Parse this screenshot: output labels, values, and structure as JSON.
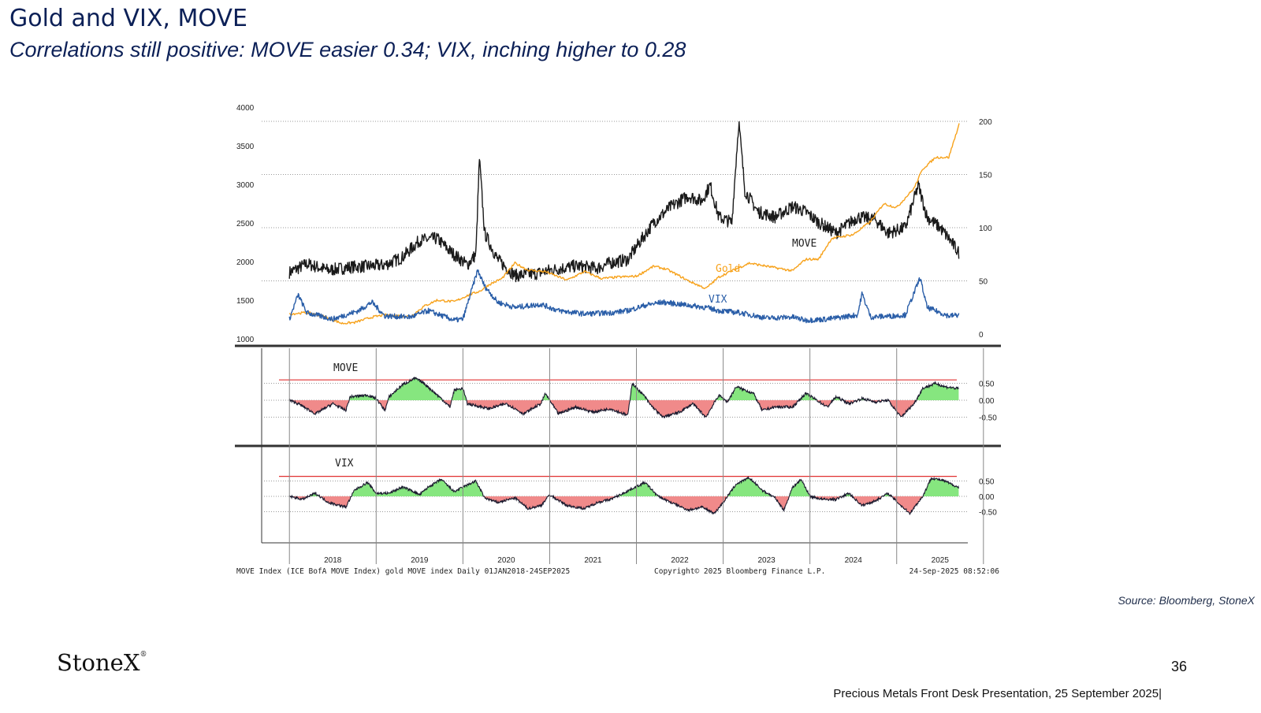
{
  "slide": {
    "title": "Gold and VIX, MOVE",
    "subtitle": "Correlations still positive:  MOVE easier 0.34; VIX, inching higher to 0.28",
    "source": "Source: Bloomberg, StoneX",
    "logo": "StoneX",
    "page_number": "36",
    "footer": "Precious Metals Front Desk Presentation, 25 September 2025|"
  },
  "colors": {
    "title": "#0c2057",
    "gold": "#f7a21b",
    "move": "#1a1a1a",
    "vix": "#2a5ea8",
    "positive_fill": "#86e67f",
    "negative_fill": "#f08a8a",
    "redline": "#e03030"
  },
  "chart_data": [
    {
      "type": "line",
      "panel": "top",
      "left_axis_ticks": [
        "4000",
        "3500",
        "3000",
        "2500",
        "2000",
        "1500",
        "1000"
      ],
      "right_axis_ticks": [
        "200",
        "150",
        "100",
        "50",
        "0"
      ],
      "ylim_left": [
        1000,
        4000
      ],
      "ylim_right": [
        0,
        210
      ],
      "x_ticks": [
        "2018",
        "2019",
        "2020",
        "2021",
        "2022",
        "2023",
        "2024",
        "2025"
      ],
      "grid": true,
      "series": [
        {
          "name": "MOVE",
          "axis": "right",
          "points": [
            [
              2018.0,
              58
            ],
            [
              2018.2,
              66
            ],
            [
              2018.45,
              60
            ],
            [
              2018.7,
              63
            ],
            [
              2018.95,
              64
            ],
            [
              2019.1,
              65
            ],
            [
              2019.3,
              72
            ],
            [
              2019.5,
              88
            ],
            [
              2019.7,
              90
            ],
            [
              2019.85,
              78
            ],
            [
              2020.05,
              65
            ],
            [
              2020.15,
              75
            ],
            [
              2020.19,
              165
            ],
            [
              2020.25,
              95
            ],
            [
              2020.4,
              70
            ],
            [
              2020.6,
              55
            ],
            [
              2020.85,
              57
            ],
            [
              2021.0,
              60
            ],
            [
              2021.3,
              64
            ],
            [
              2021.55,
              62
            ],
            [
              2021.7,
              67
            ],
            [
              2021.9,
              70
            ],
            [
              2022.0,
              82
            ],
            [
              2022.2,
              105
            ],
            [
              2022.4,
              120
            ],
            [
              2022.6,
              130
            ],
            [
              2022.75,
              125
            ],
            [
              2022.85,
              140
            ],
            [
              2022.95,
              110
            ],
            [
              2023.1,
              105
            ],
            [
              2023.18,
              200
            ],
            [
              2023.25,
              135
            ],
            [
              2023.4,
              115
            ],
            [
              2023.6,
              110
            ],
            [
              2023.8,
              120
            ],
            [
              2023.95,
              115
            ],
            [
              2024.1,
              105
            ],
            [
              2024.3,
              95
            ],
            [
              2024.55,
              110
            ],
            [
              2024.75,
              108
            ],
            [
              2024.9,
              95
            ],
            [
              2025.1,
              100
            ],
            [
              2025.25,
              140
            ],
            [
              2025.35,
              110
            ],
            [
              2025.5,
              100
            ],
            [
              2025.6,
              90
            ],
            [
              2025.72,
              76
            ]
          ]
        },
        {
          "name": "Gold",
          "axis": "left",
          "points": [
            [
              2018.0,
              1320
            ],
            [
              2018.2,
              1340
            ],
            [
              2018.4,
              1290
            ],
            [
              2018.6,
              1200
            ],
            [
              2018.75,
              1210
            ],
            [
              2018.95,
              1280
            ],
            [
              2019.1,
              1310
            ],
            [
              2019.4,
              1290
            ],
            [
              2019.55,
              1420
            ],
            [
              2019.7,
              1500
            ],
            [
              2019.9,
              1480
            ],
            [
              2020.05,
              1560
            ],
            [
              2020.2,
              1620
            ],
            [
              2020.3,
              1700
            ],
            [
              2020.45,
              1780
            ],
            [
              2020.6,
              1980
            ],
            [
              2020.75,
              1890
            ],
            [
              2020.95,
              1870
            ],
            [
              2021.2,
              1760
            ],
            [
              2021.4,
              1870
            ],
            [
              2021.6,
              1780
            ],
            [
              2021.8,
              1800
            ],
            [
              2022.0,
              1810
            ],
            [
              2022.2,
              1940
            ],
            [
              2022.35,
              1900
            ],
            [
              2022.6,
              1750
            ],
            [
              2022.8,
              1650
            ],
            [
              2022.95,
              1800
            ],
            [
              2023.1,
              1880
            ],
            [
              2023.3,
              1980
            ],
            [
              2023.5,
              1940
            ],
            [
              2023.8,
              1880
            ],
            [
              2023.95,
              2030
            ],
            [
              2024.1,
              2030
            ],
            [
              2024.25,
              2300
            ],
            [
              2024.5,
              2350
            ],
            [
              2024.7,
              2520
            ],
            [
              2024.85,
              2750
            ],
            [
              2025.0,
              2700
            ],
            [
              2025.2,
              2950
            ],
            [
              2025.3,
              3200
            ],
            [
              2025.45,
              3350
            ],
            [
              2025.6,
              3350
            ],
            [
              2025.72,
              3780
            ]
          ]
        },
        {
          "name": "VIX",
          "axis": "right",
          "points": [
            [
              2018.0,
              14
            ],
            [
              2018.1,
              37
            ],
            [
              2018.2,
              20
            ],
            [
              2018.5,
              14
            ],
            [
              2018.8,
              22
            ],
            [
              2018.95,
              30
            ],
            [
              2019.1,
              17
            ],
            [
              2019.4,
              16
            ],
            [
              2019.6,
              22
            ],
            [
              2019.9,
              13
            ],
            [
              2020.0,
              14
            ],
            [
              2020.17,
              60
            ],
            [
              2020.25,
              45
            ],
            [
              2020.4,
              30
            ],
            [
              2020.6,
              25
            ],
            [
              2020.9,
              28
            ],
            [
              2021.1,
              22
            ],
            [
              2021.4,
              19
            ],
            [
              2021.7,
              20
            ],
            [
              2021.9,
              22
            ],
            [
              2022.1,
              27
            ],
            [
              2022.3,
              30
            ],
            [
              2022.5,
              28
            ],
            [
              2022.8,
              25
            ],
            [
              2022.95,
              22
            ],
            [
              2023.2,
              20
            ],
            [
              2023.5,
              15
            ],
            [
              2023.8,
              16
            ],
            [
              2023.95,
              13
            ],
            [
              2024.2,
              14
            ],
            [
              2024.55,
              18
            ],
            [
              2024.6,
              38
            ],
            [
              2024.7,
              16
            ],
            [
              2024.95,
              17
            ],
            [
              2025.1,
              18
            ],
            [
              2025.27,
              53
            ],
            [
              2025.35,
              25
            ],
            [
              2025.6,
              17
            ],
            [
              2025.72,
              18
            ]
          ]
        }
      ],
      "annotations": [
        "MOVE",
        "Gold",
        "VIX"
      ]
    },
    {
      "type": "area",
      "panel": "middle",
      "name": "MOVE",
      "y_ticks": [
        "0.50",
        "0.00",
        "-0.50"
      ],
      "ylim": [
        -0.6,
        0.65
      ],
      "threshold_line": 0.6,
      "points": [
        [
          2018.0,
          0.0
        ],
        [
          2018.1,
          -0.1
        ],
        [
          2018.3,
          -0.4
        ],
        [
          2018.5,
          -0.1
        ],
        [
          2018.65,
          -0.3
        ],
        [
          2018.7,
          0.1
        ],
        [
          2018.9,
          0.15
        ],
        [
          2019.0,
          0.05
        ],
        [
          2019.1,
          -0.3
        ],
        [
          2019.15,
          0.1
        ],
        [
          2019.3,
          0.45
        ],
        [
          2019.45,
          0.65
        ],
        [
          2019.55,
          0.5
        ],
        [
          2019.75,
          0.05
        ],
        [
          2019.85,
          -0.2
        ],
        [
          2019.9,
          0.3
        ],
        [
          2020.0,
          0.35
        ],
        [
          2020.05,
          -0.1
        ],
        [
          2020.3,
          -0.25
        ],
        [
          2020.5,
          -0.1
        ],
        [
          2020.7,
          -0.4
        ],
        [
          2020.9,
          -0.1
        ],
        [
          2020.95,
          0.2
        ],
        [
          2021.1,
          -0.4
        ],
        [
          2021.3,
          -0.2
        ],
        [
          2021.5,
          -0.35
        ],
        [
          2021.7,
          -0.25
        ],
        [
          2021.9,
          -0.45
        ],
        [
          2021.95,
          0.5
        ],
        [
          2022.1,
          0.1
        ],
        [
          2022.15,
          -0.1
        ],
        [
          2022.3,
          -0.5
        ],
        [
          2022.5,
          -0.35
        ],
        [
          2022.65,
          -0.1
        ],
        [
          2022.8,
          -0.5
        ],
        [
          2022.95,
          0.15
        ],
        [
          2023.05,
          -0.05
        ],
        [
          2023.15,
          0.4
        ],
        [
          2023.35,
          0.2
        ],
        [
          2023.45,
          -0.3
        ],
        [
          2023.6,
          -0.2
        ],
        [
          2023.8,
          -0.2
        ],
        [
          2023.95,
          0.2
        ],
        [
          2024.05,
          0.05
        ],
        [
          2024.2,
          -0.2
        ],
        [
          2024.3,
          0.1
        ],
        [
          2024.45,
          -0.1
        ],
        [
          2024.6,
          0.05
        ],
        [
          2024.75,
          -0.05
        ],
        [
          2024.9,
          0.0
        ],
        [
          2025.05,
          -0.5
        ],
        [
          2025.2,
          -0.1
        ],
        [
          2025.3,
          0.35
        ],
        [
          2025.45,
          0.5
        ],
        [
          2025.55,
          0.4
        ],
        [
          2025.72,
          0.34
        ]
      ]
    },
    {
      "type": "area",
      "panel": "bottom",
      "name": "VIX",
      "y_ticks": [
        "0.50",
        "0.00",
        "-0.50"
      ],
      "ylim": [
        -0.65,
        0.7
      ],
      "threshold_line": 0.65,
      "points": [
        [
          2018.0,
          0.0
        ],
        [
          2018.15,
          -0.1
        ],
        [
          2018.3,
          0.1
        ],
        [
          2018.45,
          -0.2
        ],
        [
          2018.65,
          -0.35
        ],
        [
          2018.75,
          0.2
        ],
        [
          2018.9,
          0.45
        ],
        [
          2019.0,
          0.1
        ],
        [
          2019.15,
          0.1
        ],
        [
          2019.3,
          0.3
        ],
        [
          2019.4,
          0.2
        ],
        [
          2019.5,
          0.05
        ],
        [
          2019.6,
          0.3
        ],
        [
          2019.75,
          0.55
        ],
        [
          2019.9,
          0.15
        ],
        [
          2020.0,
          0.3
        ],
        [
          2020.15,
          0.5
        ],
        [
          2020.25,
          -0.05
        ],
        [
          2020.4,
          -0.2
        ],
        [
          2020.6,
          -0.05
        ],
        [
          2020.75,
          -0.4
        ],
        [
          2020.9,
          -0.3
        ],
        [
          2021.0,
          0.05
        ],
        [
          2021.2,
          -0.3
        ],
        [
          2021.4,
          -0.4
        ],
        [
          2021.55,
          -0.2
        ],
        [
          2021.7,
          -0.1
        ],
        [
          2021.85,
          0.1
        ],
        [
          2021.95,
          0.25
        ],
        [
          2022.1,
          0.45
        ],
        [
          2022.25,
          0.0
        ],
        [
          2022.4,
          -0.2
        ],
        [
          2022.6,
          -0.45
        ],
        [
          2022.75,
          -0.35
        ],
        [
          2022.9,
          -0.55
        ],
        [
          2023.0,
          -0.2
        ],
        [
          2023.15,
          0.4
        ],
        [
          2023.3,
          0.6
        ],
        [
          2023.45,
          0.2
        ],
        [
          2023.6,
          -0.05
        ],
        [
          2023.7,
          -0.45
        ],
        [
          2023.8,
          0.3
        ],
        [
          2023.9,
          0.55
        ],
        [
          2024.0,
          0.0
        ],
        [
          2024.15,
          -0.1
        ],
        [
          2024.3,
          -0.1
        ],
        [
          2024.45,
          0.1
        ],
        [
          2024.6,
          -0.3
        ],
        [
          2024.75,
          -0.15
        ],
        [
          2024.9,
          0.1
        ],
        [
          2025.05,
          -0.3
        ],
        [
          2025.15,
          -0.55
        ],
        [
          2025.3,
          0.0
        ],
        [
          2025.4,
          0.6
        ],
        [
          2025.55,
          0.5
        ],
        [
          2025.72,
          0.28
        ]
      ]
    }
  ],
  "bloomberg_footer": {
    "left": "MOVE Index (ICE BofA MOVE Index) gold MOVE index  Daily 01JAN2018-24SEP2025",
    "center": "Copyright© 2025 Bloomberg Finance L.P.",
    "right": "24-Sep-2025 08:52:06"
  }
}
